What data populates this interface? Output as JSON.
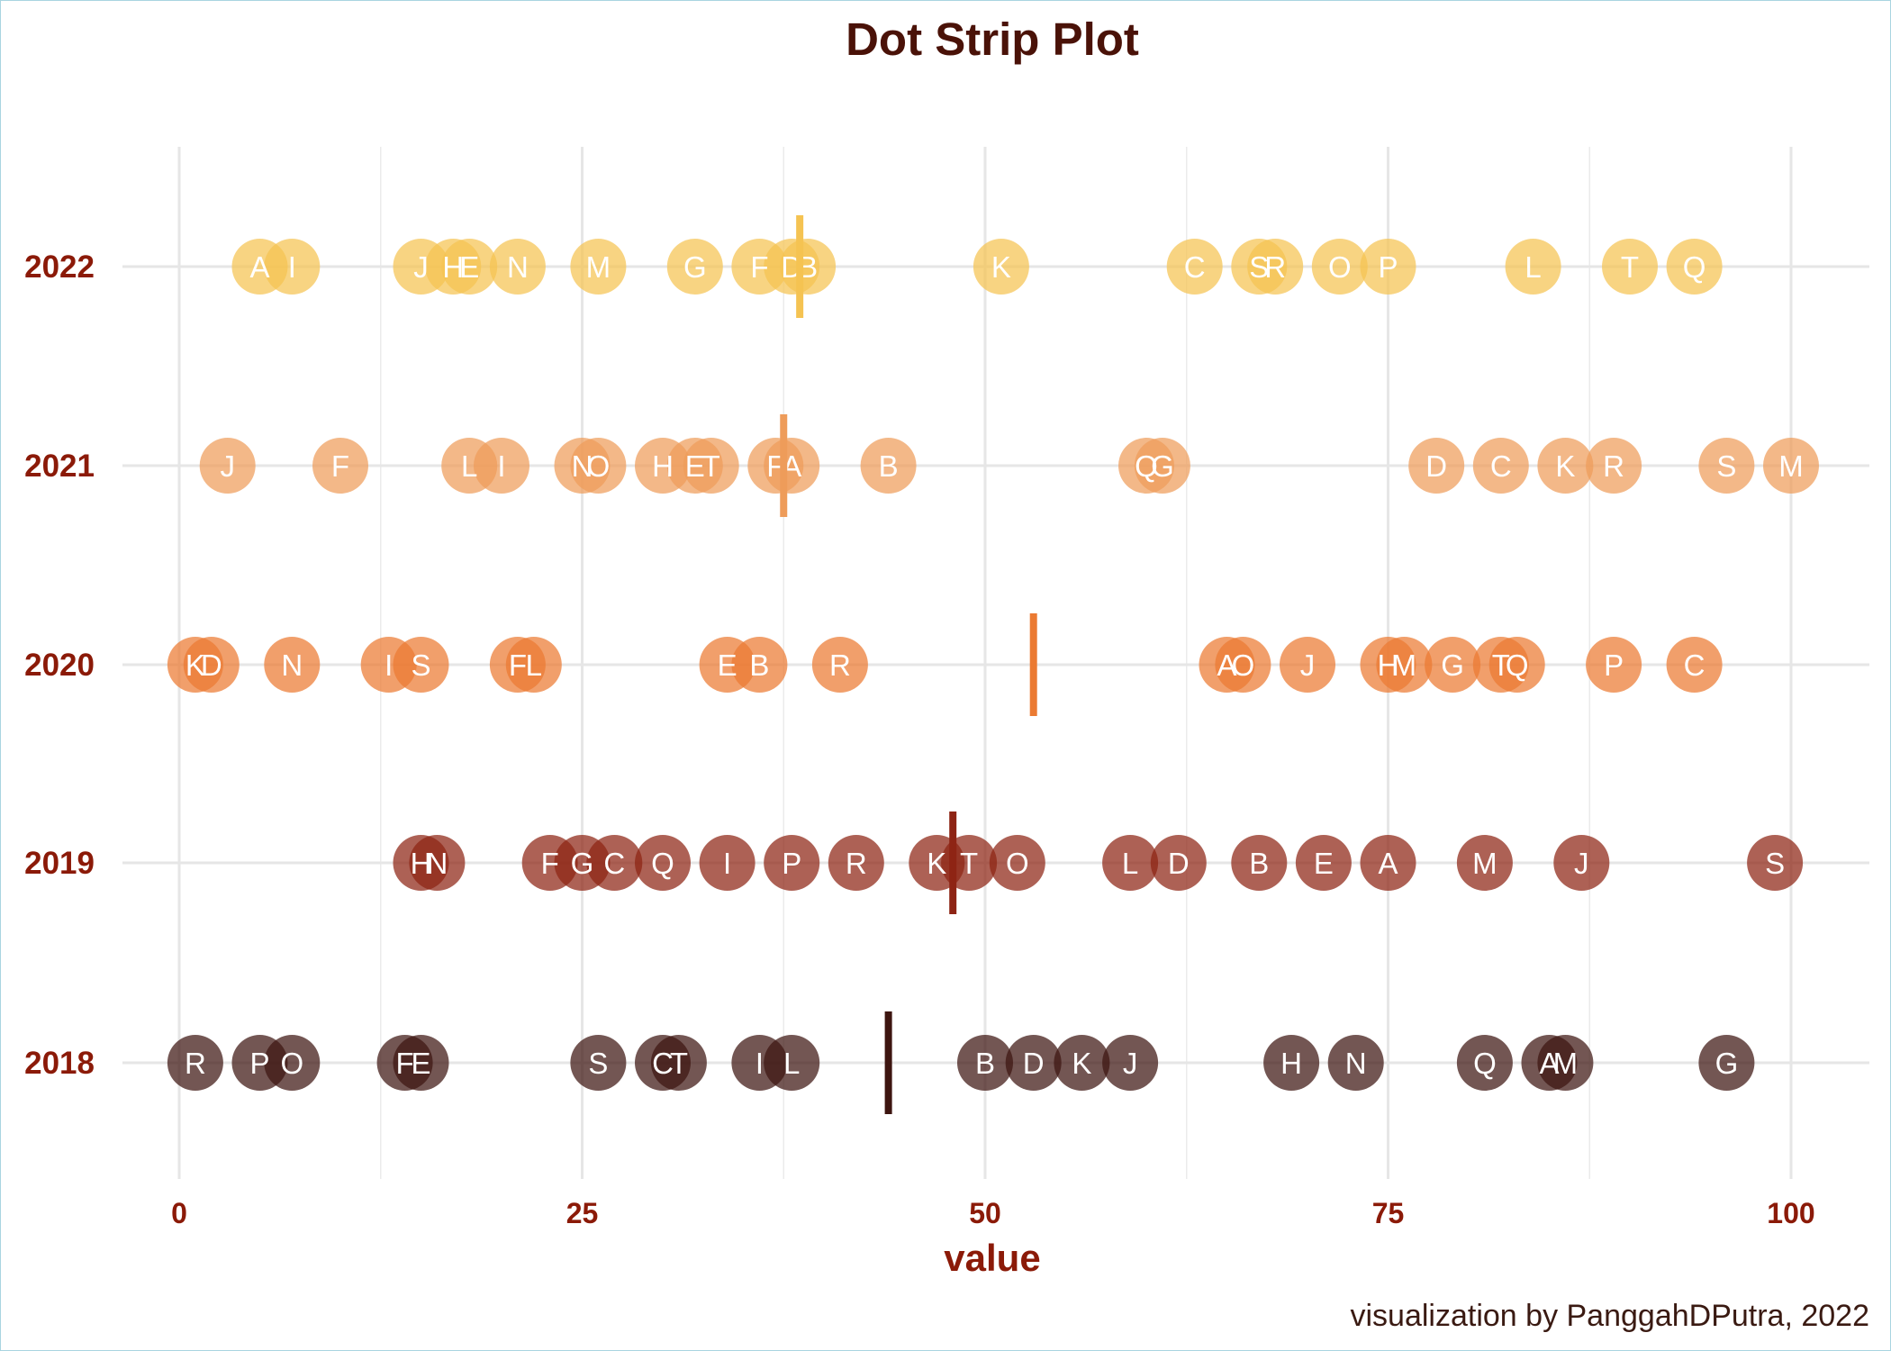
{
  "chart_data": {
    "type": "scatter",
    "title": "Dot Strip Plot",
    "xlabel": "value",
    "ylabel": "",
    "xlim": [
      0,
      100
    ],
    "x_ticks": [
      0,
      25,
      50,
      75,
      100
    ],
    "grid": true,
    "caption": "visualization by PanggahDPutra, 2022",
    "series": [
      {
        "year": "2018",
        "color": "#3d1510",
        "mean": 44,
        "points": [
          {
            "label": "R",
            "value": 1
          },
          {
            "label": "P",
            "value": 5
          },
          {
            "label": "O",
            "value": 7
          },
          {
            "label": "F",
            "value": 14
          },
          {
            "label": "E",
            "value": 15
          },
          {
            "label": "S",
            "value": 26
          },
          {
            "label": "C",
            "value": 30
          },
          {
            "label": "T",
            "value": 31
          },
          {
            "label": "I",
            "value": 36
          },
          {
            "label": "L",
            "value": 38
          },
          {
            "label": "B",
            "value": 50
          },
          {
            "label": "D",
            "value": 53
          },
          {
            "label": "K",
            "value": 56
          },
          {
            "label": "J",
            "value": 59
          },
          {
            "label": "H",
            "value": 69
          },
          {
            "label": "N",
            "value": 73
          },
          {
            "label": "Q",
            "value": 81
          },
          {
            "label": "A",
            "value": 85
          },
          {
            "label": "M",
            "value": 86
          },
          {
            "label": "G",
            "value": 96
          }
        ]
      },
      {
        "year": "2019",
        "color": "#8e2414",
        "mean": 48,
        "points": [
          {
            "label": "H",
            "value": 15
          },
          {
            "label": "N",
            "value": 16
          },
          {
            "label": "F",
            "value": 23
          },
          {
            "label": "G",
            "value": 25
          },
          {
            "label": "C",
            "value": 27
          },
          {
            "label": "Q",
            "value": 30
          },
          {
            "label": "I",
            "value": 34
          },
          {
            "label": "P",
            "value": 38
          },
          {
            "label": "R",
            "value": 42
          },
          {
            "label": "K",
            "value": 47
          },
          {
            "label": "T",
            "value": 49
          },
          {
            "label": "O",
            "value": 52
          },
          {
            "label": "L",
            "value": 59
          },
          {
            "label": "D",
            "value": 62
          },
          {
            "label": "B",
            "value": 67
          },
          {
            "label": "E",
            "value": 71
          },
          {
            "label": "A",
            "value": 75
          },
          {
            "label": "M",
            "value": 81
          },
          {
            "label": "J",
            "value": 87
          },
          {
            "label": "S",
            "value": 99
          }
        ]
      },
      {
        "year": "2020",
        "color": "#eb7a32",
        "mean": 53,
        "points": [
          {
            "label": "K",
            "value": 1
          },
          {
            "label": "D",
            "value": 2
          },
          {
            "label": "N",
            "value": 7
          },
          {
            "label": "I",
            "value": 13
          },
          {
            "label": "S",
            "value": 15
          },
          {
            "label": "F",
            "value": 21
          },
          {
            "label": "L",
            "value": 22
          },
          {
            "label": "E",
            "value": 34
          },
          {
            "label": "B",
            "value": 36
          },
          {
            "label": "R",
            "value": 41
          },
          {
            "label": "A",
            "value": 65
          },
          {
            "label": "O",
            "value": 66
          },
          {
            "label": "J",
            "value": 70
          },
          {
            "label": "H",
            "value": 75
          },
          {
            "label": "M",
            "value": 76
          },
          {
            "label": "G",
            "value": 79
          },
          {
            "label": "T",
            "value": 82
          },
          {
            "label": "Q",
            "value": 83
          },
          {
            "label": "P",
            "value": 89
          },
          {
            "label": "C",
            "value": 94
          }
        ]
      },
      {
        "year": "2021",
        "color": "#ee9c5a",
        "mean": 37.5,
        "points": [
          {
            "label": "J",
            "value": 3
          },
          {
            "label": "F",
            "value": 10
          },
          {
            "label": "L",
            "value": 18
          },
          {
            "label": "I",
            "value": 20
          },
          {
            "label": "N",
            "value": 25
          },
          {
            "label": "O",
            "value": 26
          },
          {
            "label": "H",
            "value": 30
          },
          {
            "label": "E",
            "value": 32
          },
          {
            "label": "T",
            "value": 33
          },
          {
            "label": "F",
            "value": 37
          },
          {
            "label": "A",
            "value": 38
          },
          {
            "label": "B",
            "value": 44
          },
          {
            "label": "Q",
            "value": 60
          },
          {
            "label": "G",
            "value": 61
          },
          {
            "label": "D",
            "value": 78
          },
          {
            "label": "C",
            "value": 82
          },
          {
            "label": "K",
            "value": 86
          },
          {
            "label": "R",
            "value": 89
          },
          {
            "label": "S",
            "value": 96
          },
          {
            "label": "M",
            "value": 100
          }
        ]
      },
      {
        "year": "2022",
        "color": "#f5c352",
        "mean": 38.5,
        "points": [
          {
            "label": "A",
            "value": 5
          },
          {
            "label": "I",
            "value": 7
          },
          {
            "label": "J",
            "value": 15
          },
          {
            "label": "H",
            "value": 17
          },
          {
            "label": "E",
            "value": 18
          },
          {
            "label": "N",
            "value": 21
          },
          {
            "label": "M",
            "value": 26
          },
          {
            "label": "G",
            "value": 32
          },
          {
            "label": "F",
            "value": 36
          },
          {
            "label": "D",
            "value": 38
          },
          {
            "label": "B",
            "value": 39
          },
          {
            "label": "K",
            "value": 51
          },
          {
            "label": "C",
            "value": 63
          },
          {
            "label": "S",
            "value": 67
          },
          {
            "label": "R",
            "value": 68
          },
          {
            "label": "O",
            "value": 72
          },
          {
            "label": "P",
            "value": 75
          },
          {
            "label": "L",
            "value": 84
          },
          {
            "label": "T",
            "value": 90
          },
          {
            "label": "Q",
            "value": 94
          }
        ]
      }
    ]
  }
}
